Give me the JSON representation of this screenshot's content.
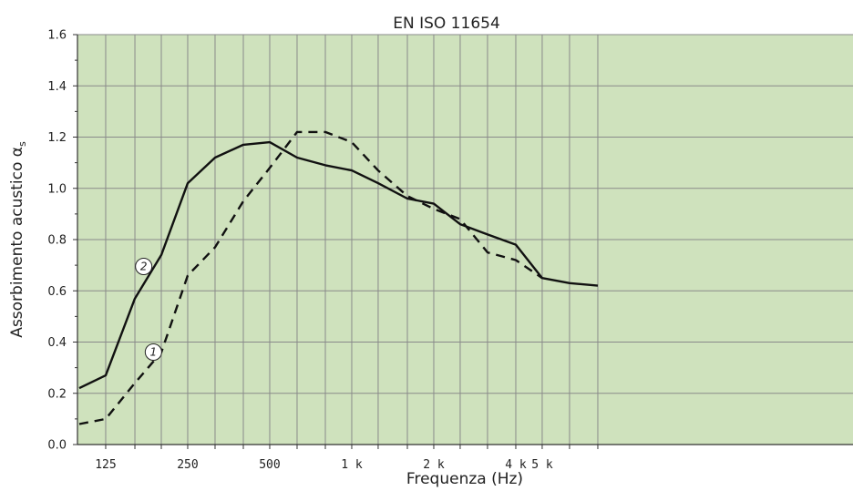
{
  "chart_data": {
    "type": "line",
    "title": "EN ISO 11654",
    "xlabel": "Frequenza (Hz)",
    "ylabel": "Assorbimento acustico α",
    "ylabel_subscript": "s",
    "x_scale": "log",
    "ylim": [
      0,
      1.6
    ],
    "grid": true,
    "y_ticks": [
      "0.0",
      "0.2",
      "0.4",
      "0.6",
      "0.8",
      "1.0",
      "1.2",
      "1.4",
      "1.6"
    ],
    "x_ticks": [
      {
        "value": 125,
        "label": "125"
      },
      {
        "value": 250,
        "label": "250"
      },
      {
        "value": 500,
        "label": "500"
      },
      {
        "value": 1000,
        "label": "1 k"
      },
      {
        "value": 2000,
        "label": "2 k"
      },
      {
        "value": 4000,
        "label": "4 k"
      },
      {
        "value": 5000,
        "label": "5 k"
      }
    ],
    "series": [
      {
        "name": "1",
        "style": "dashed",
        "x": [
          100,
          125,
          160,
          200,
          250,
          315,
          400,
          500,
          630,
          800,
          1000,
          1250,
          1600,
          2000,
          2500,
          3150,
          4000,
          5000
        ],
        "values": [
          0.08,
          0.1,
          0.24,
          0.36,
          0.66,
          0.77,
          0.95,
          1.08,
          1.22,
          1.22,
          1.18,
          1.07,
          0.97,
          0.92,
          0.88,
          0.75,
          0.72,
          0.65
        ]
      },
      {
        "name": "2",
        "style": "solid",
        "x": [
          100,
          125,
          160,
          200,
          250,
          315,
          400,
          500,
          630,
          800,
          1000,
          1250,
          1600,
          2000,
          2500,
          3150,
          4000,
          5000,
          6300,
          8000
        ],
        "values": [
          0.22,
          0.27,
          0.57,
          0.74,
          1.02,
          1.12,
          1.17,
          1.18,
          1.12,
          1.09,
          1.07,
          1.02,
          0.96,
          0.94,
          0.86,
          0.82,
          0.78,
          0.65,
          0.63,
          0.62
        ]
      }
    ],
    "colors": {
      "background": "#cfe2bd",
      "grid": "#8a8a8a",
      "line": "#111111"
    }
  }
}
